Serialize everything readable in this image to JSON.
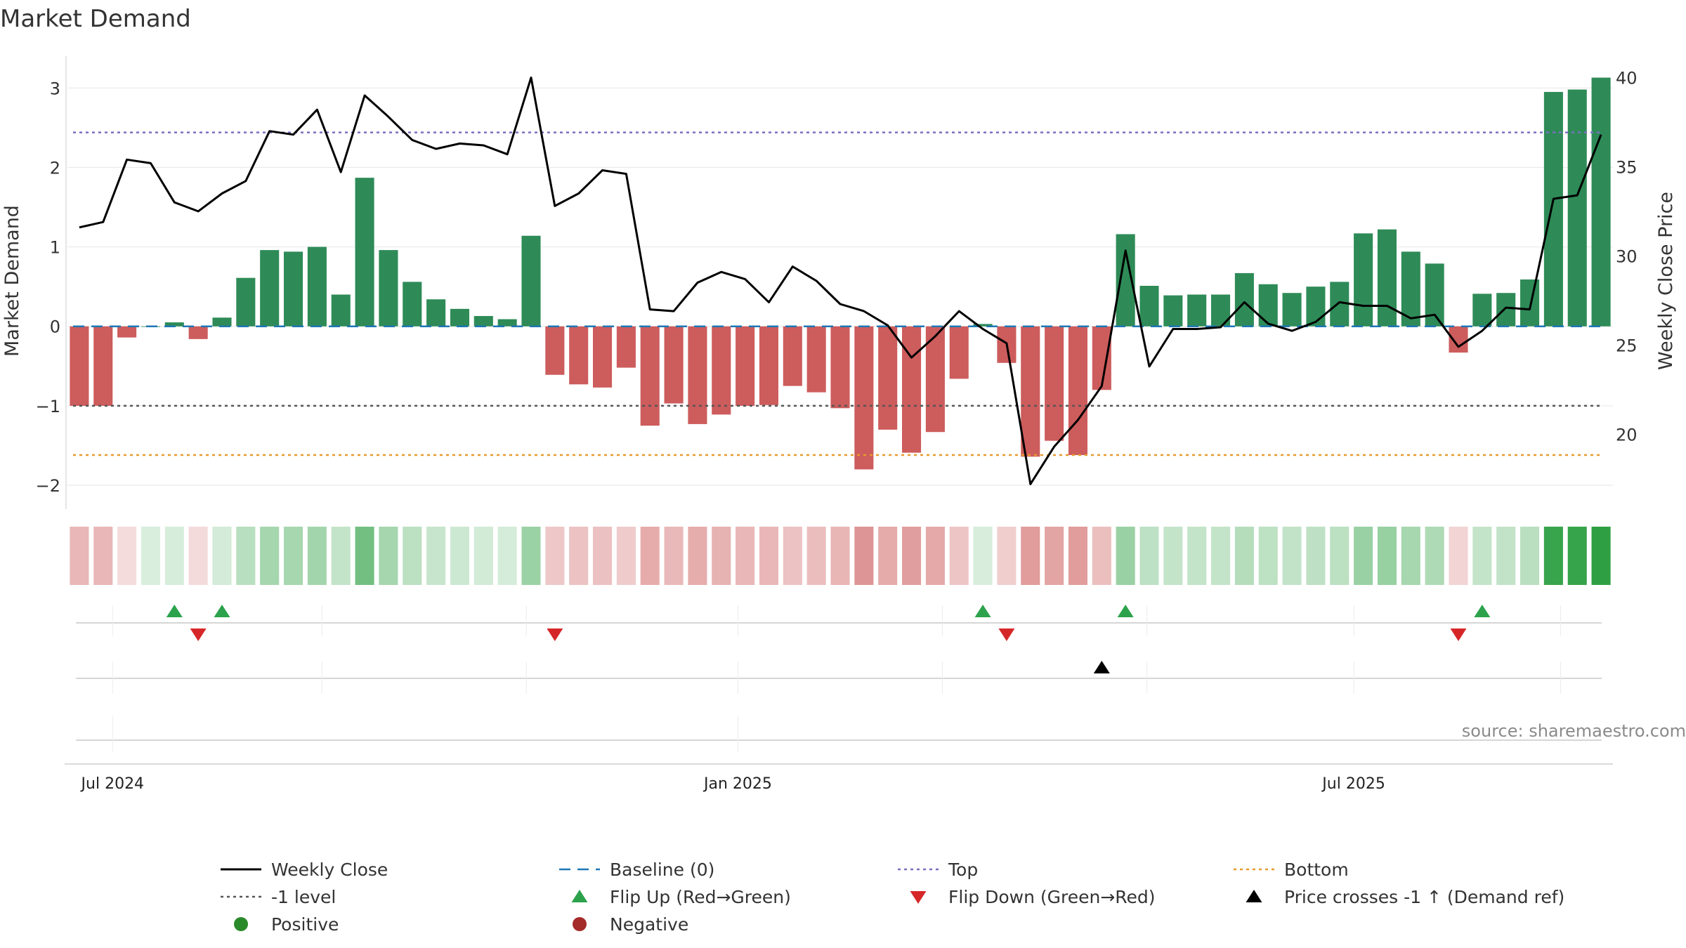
{
  "chart_data": {
    "type": "bar",
    "title": "Market Demand",
    "ylabel": "Market Demand",
    "ylabel_right": "Weekly Close Price",
    "source": "source: sharemaestro.com",
    "ylim": [
      -2.3,
      3.4
    ],
    "ylim_right": [
      15.8,
      41.2
    ],
    "yticks": [
      -2,
      -1,
      0,
      1,
      2,
      3
    ],
    "ytick_labels": [
      "−2",
      "−1",
      "0",
      "1",
      "2",
      "3"
    ],
    "yticks_right": [
      20,
      25,
      30,
      35,
      40
    ],
    "top_level": 2.44,
    "bottom_level": -1.62,
    "minus1_level": -1,
    "x_ticks": [
      {
        "index": 1.4,
        "label": "Jul 2024"
      },
      {
        "index": 27.7,
        "label": "Jan 2025"
      },
      {
        "index": 53.6,
        "label": "Jul 2025"
      }
    ],
    "demand": [
      -1.0,
      -1.0,
      -0.14,
      0.0,
      0.05,
      -0.16,
      0.11,
      0.61,
      0.96,
      0.94,
      1.0,
      0.4,
      1.87,
      0.96,
      0.56,
      0.34,
      0.22,
      0.13,
      0.09,
      1.14,
      -0.61,
      -0.73,
      -0.77,
      -0.52,
      -1.25,
      -0.97,
      -1.23,
      -1.11,
      -1.0,
      -0.99,
      -0.75,
      -0.83,
      -1.03,
      -1.8,
      -1.3,
      -1.59,
      -1.33,
      -0.66,
      0.03,
      -0.46,
      -1.64,
      -1.44,
      -1.62,
      -0.8,
      1.16,
      0.51,
      0.39,
      0.4,
      0.4,
      0.67,
      0.53,
      0.42,
      0.5,
      0.56,
      1.17,
      1.22,
      0.94,
      0.79,
      -0.33,
      0.41,
      0.42,
      0.59,
      2.95,
      2.98,
      3.13
    ],
    "price": [
      31.6,
      31.9,
      35.4,
      35.2,
      33.0,
      32.5,
      33.5,
      34.2,
      37.0,
      36.8,
      38.2,
      34.7,
      39.0,
      37.8,
      36.5,
      36.0,
      36.3,
      36.2,
      35.7,
      40.0,
      32.8,
      33.5,
      34.8,
      34.6,
      27.0,
      26.9,
      28.5,
      29.1,
      28.7,
      27.4,
      29.4,
      28.6,
      27.3,
      26.9,
      26.1,
      24.3,
      25.5,
      26.9,
      25.9,
      25.1,
      17.2,
      19.3,
      20.8,
      22.7,
      30.3,
      23.8,
      25.9,
      25.9,
      26.0,
      27.4,
      26.2,
      25.8,
      26.3,
      27.4,
      27.2,
      27.2,
      26.5,
      26.7,
      24.9,
      25.8,
      27.1,
      27.0,
      33.2,
      33.4,
      36.8
    ],
    "flip_up_indices": [
      4,
      6,
      38,
      44,
      59
    ],
    "flip_down_indices": [
      5,
      20,
      39,
      58
    ],
    "price_cross_indices": [
      43
    ],
    "colors": {
      "positive_bar": "#2e8b57",
      "negative_bar": "#cd5c5c",
      "price_line": "#000000",
      "baseline": "#1f77b4",
      "top": "#7b6fc0",
      "minus1": "#555555",
      "bottom": "#e89a2c",
      "flip_up": "#2ca24c",
      "flip_down": "#d62728",
      "cross": "#000000",
      "positive_dot": "#2a8a2a",
      "negative_dot": "#a52a2a"
    },
    "legend": [
      {
        "label": "Weekly Close",
        "kind": "line-solid",
        "color_key": "price_line"
      },
      {
        "label": "Baseline (0)",
        "kind": "line-dashed",
        "color_key": "baseline"
      },
      {
        "label": "Top",
        "kind": "line-dotted",
        "color_key": "top"
      },
      {
        "label": "Bottom",
        "kind": "line-dotted",
        "color_key": "bottom"
      },
      {
        "label": "-1 level",
        "kind": "line-dotted",
        "color_key": "minus1"
      },
      {
        "label": "Flip Up (Red→Green)",
        "kind": "triangle-up",
        "color_key": "flip_up"
      },
      {
        "label": "Flip Down (Green→Red)",
        "kind": "triangle-down",
        "color_key": "flip_down"
      },
      {
        "label": "Price crosses -1 ↑ (Demand ref)",
        "kind": "triangle-up",
        "color_key": "cross"
      },
      {
        "label": "Positive",
        "kind": "dot",
        "color_key": "positive_dot"
      },
      {
        "label": "Negative",
        "kind": "dot",
        "color_key": "negative_dot"
      }
    ]
  }
}
